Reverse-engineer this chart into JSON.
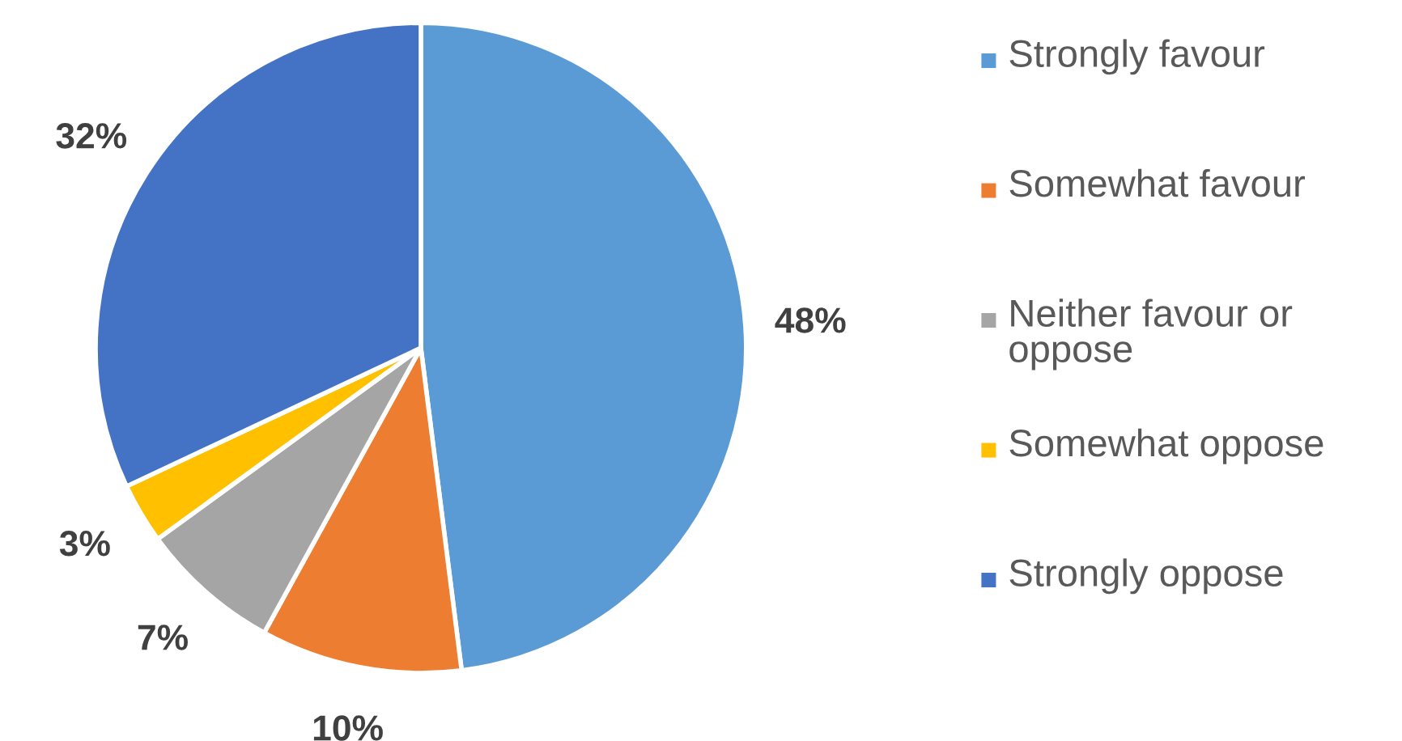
{
  "chart_data": {
    "type": "pie",
    "categories": [
      "Strongly favour",
      "Somewhat favour",
      "Neither favour or oppose",
      "Somewhat oppose",
      "Strongly oppose"
    ],
    "values": [
      48,
      10,
      7,
      3,
      32
    ],
    "value_labels": [
      "48%",
      "10%",
      "7%",
      "3%",
      "32%"
    ],
    "colors": [
      "#5b9bd5",
      "#ed7d31",
      "#a5a5a5",
      "#ffc000",
      "#4472c4"
    ],
    "legend": "right"
  }
}
